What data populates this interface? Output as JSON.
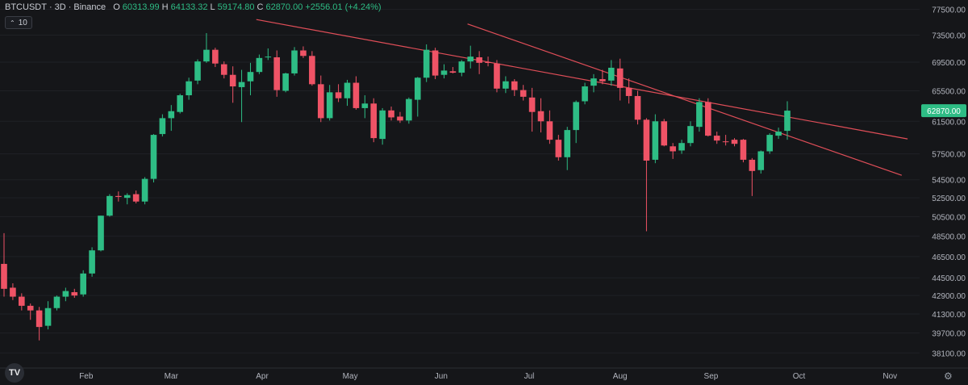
{
  "header": {
    "symbol": "BTCUSDT",
    "interval": "3D",
    "exchange": "Binance",
    "open_label": "O",
    "open": "60313.99",
    "high_label": "H",
    "high": "64133.32",
    "low_label": "L",
    "low": "59174.80",
    "close_label": "C",
    "close": "62870.00",
    "change": "+2556.01 (+4.24%)"
  },
  "indicator_badge": {
    "label": "10"
  },
  "logo_text": "TV",
  "colors": {
    "up": "#26a69a",
    "up_bright": "#2ebd85",
    "down": "#ef5366",
    "trendline": "#e04e58",
    "background": "#151619",
    "price_label": "#2ebd85"
  },
  "chart_data": {
    "type": "candlestick",
    "y_scale": "log",
    "ylim": [
      37300,
      78500
    ],
    "price_ticks": [
      "77500.00",
      "73500.00",
      "69500.00",
      "65500.00",
      "62870.00",
      "61500.00",
      "57500.00",
      "54500.00",
      "52500.00",
      "50500.00",
      "48500.00",
      "46500.00",
      "44500.00",
      "42900.00",
      "41300.00",
      "39700.00",
      "38100.00"
    ],
    "current_price": "62870.00",
    "x_ticks": [
      "Feb",
      "Mar",
      "Apr",
      "May",
      "Jun",
      "Jul",
      "Aug",
      "Sep",
      "Oct",
      "Nov"
    ],
    "candles": [
      [
        45800,
        48800,
        42800,
        43500
      ],
      [
        43600,
        44000,
        42500,
        42800
      ],
      [
        42800,
        43100,
        41600,
        42000
      ],
      [
        42000,
        42200,
        40800,
        41600
      ],
      [
        41600,
        41900,
        39100,
        40200
      ],
      [
        40300,
        42400,
        40000,
        41800
      ],
      [
        41800,
        42900,
        41600,
        42800
      ],
      [
        42800,
        43600,
        42400,
        43300
      ],
      [
        43200,
        43500,
        42700,
        42900
      ],
      [
        43000,
        45200,
        42800,
        44900
      ],
      [
        44900,
        47400,
        44600,
        47100
      ],
      [
        47100,
        50600,
        47000,
        50600
      ],
      [
        50600,
        52900,
        50500,
        52700
      ],
      [
        52700,
        53200,
        52100,
        52600
      ],
      [
        52500,
        53000,
        51800,
        52800
      ],
      [
        52900,
        53300,
        51900,
        52100
      ],
      [
        52100,
        54800,
        51800,
        54600
      ],
      [
        54600,
        59900,
        54200,
        59800
      ],
      [
        59900,
        62400,
        59600,
        61900
      ],
      [
        61900,
        63600,
        60300,
        62800
      ],
      [
        62700,
        65100,
        62500,
        64900
      ],
      [
        64900,
        67300,
        64300,
        66800
      ],
      [
        66900,
        69900,
        66400,
        69600
      ],
      [
        69600,
        73800,
        69400,
        71300
      ],
      [
        71300,
        71600,
        68800,
        69300
      ],
      [
        69200,
        69600,
        67200,
        67700
      ],
      [
        67700,
        68900,
        63900,
        66100
      ],
      [
        66000,
        68400,
        61400,
        66700
      ],
      [
        66800,
        69400,
        64900,
        68100
      ],
      [
        68100,
        70600,
        67800,
        70100
      ],
      [
        70200,
        71500,
        69800,
        70300
      ],
      [
        70200,
        71200,
        64700,
        65600
      ],
      [
        65500,
        68000,
        65300,
        67900
      ],
      [
        67900,
        71700,
        67600,
        71200
      ],
      [
        71200,
        71800,
        70100,
        70400
      ],
      [
        70400,
        71100,
        66200,
        66400
      ],
      [
        66400,
        67600,
        61400,
        61900
      ],
      [
        61900,
        66300,
        61600,
        65300
      ],
      [
        65300,
        66400,
        64000,
        64500
      ],
      [
        64500,
        67000,
        63500,
        66600
      ],
      [
        66600,
        67500,
        63000,
        63200
      ],
      [
        63200,
        64900,
        61900,
        63800
      ],
      [
        63800,
        64500,
        58900,
        59400
      ],
      [
        59300,
        63200,
        58600,
        62900
      ],
      [
        62900,
        63400,
        61600,
        62000
      ],
      [
        62100,
        62700,
        61300,
        61600
      ],
      [
        61600,
        64600,
        61200,
        64400
      ],
      [
        64300,
        67400,
        62100,
        67300
      ],
      [
        67300,
        72100,
        66700,
        71300
      ],
      [
        71200,
        71600,
        67100,
        67600
      ],
      [
        67700,
        69200,
        67200,
        68300
      ],
      [
        68200,
        68800,
        67900,
        68000
      ],
      [
        68000,
        69800,
        67500,
        69600
      ],
      [
        69600,
        71900,
        68600,
        70300
      ],
      [
        70200,
        71100,
        67800,
        69400
      ],
      [
        69500,
        70300,
        68900,
        69400
      ],
      [
        69300,
        69800,
        65300,
        65800
      ],
      [
        65800,
        67500,
        65200,
        66800
      ],
      [
        66800,
        67100,
        64800,
        65600
      ],
      [
        65600,
        66300,
        64200,
        64700
      ],
      [
        64600,
        65900,
        60200,
        62700
      ],
      [
        62800,
        64500,
        60100,
        61500
      ],
      [
        61500,
        62900,
        58700,
        59200
      ],
      [
        59200,
        59800,
        56700,
        57100
      ],
      [
        57100,
        60800,
        55600,
        60400
      ],
      [
        60400,
        64200,
        58800,
        64000
      ],
      [
        64100,
        66600,
        63700,
        66100
      ],
      [
        66200,
        67800,
        65300,
        67200
      ],
      [
        67100,
        68400,
        66400,
        66800
      ],
      [
        66900,
        69800,
        66200,
        68700
      ],
      [
        68600,
        70000,
        64200,
        65900
      ],
      [
        65900,
        67200,
        63800,
        64800
      ],
      [
        64800,
        65500,
        61100,
        61700
      ],
      [
        61700,
        61900,
        49000,
        56700
      ],
      [
        56800,
        62400,
        56400,
        61500
      ],
      [
        61500,
        61800,
        58400,
        58500
      ],
      [
        58400,
        58800,
        56900,
        57800
      ],
      [
        57900,
        59200,
        57500,
        58800
      ],
      [
        58800,
        61500,
        58400,
        60900
      ],
      [
        60800,
        64500,
        60200,
        64000
      ],
      [
        64000,
        64500,
        59600,
        59700
      ],
      [
        59700,
        60200,
        58700,
        59100
      ],
      [
        59000,
        59800,
        58500,
        58900
      ],
      [
        59200,
        59400,
        58400,
        58700
      ],
      [
        59200,
        59300,
        56500,
        56800
      ],
      [
        56800,
        57000,
        52700,
        55500
      ],
      [
        55600,
        57900,
        55200,
        57800
      ],
      [
        57800,
        60000,
        57500,
        59800
      ],
      [
        59700,
        60700,
        59300,
        60200
      ],
      [
        60300,
        64100,
        59200,
        62870
      ]
    ],
    "trendlines": [
      {
        "from": [
          "2024-03-30",
          75900
        ],
        "to": [
          "2024-11-07",
          59300
        ]
      },
      {
        "from": [
          "2024-06-10",
          75200
        ],
        "to": [
          "2024-11-05",
          55000
        ]
      }
    ]
  }
}
